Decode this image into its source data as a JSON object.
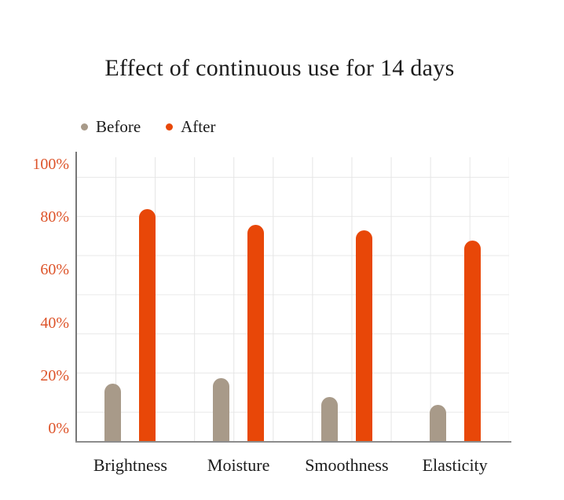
{
  "title": "Effect of continuous use for 14 days",
  "legend": {
    "before": "Before",
    "after": "After"
  },
  "chart_data": {
    "type": "bar",
    "title": "Effect of continuous use for 14 days",
    "categories": [
      "Brightness",
      "Moisture",
      "Smoothness",
      "Elasticity"
    ],
    "series": [
      {
        "name": "Before",
        "color": "#a89a89",
        "values": [
          17,
          19,
          12,
          9
        ]
      },
      {
        "name": "After",
        "color": "#e84708",
        "values": [
          83,
          77,
          75,
          71
        ]
      }
    ],
    "unit": "%",
    "yticks": [
      0,
      20,
      40,
      60,
      80,
      100
    ],
    "ylim": [
      0,
      100
    ],
    "grid": true,
    "legend_position": "top-left",
    "colors": {
      "tick_label": "#dd5329",
      "axis": "#7d7d7d",
      "grid": "#e5e5e5",
      "title_text": "#1c1c1c",
      "background": "#ffffff"
    }
  }
}
